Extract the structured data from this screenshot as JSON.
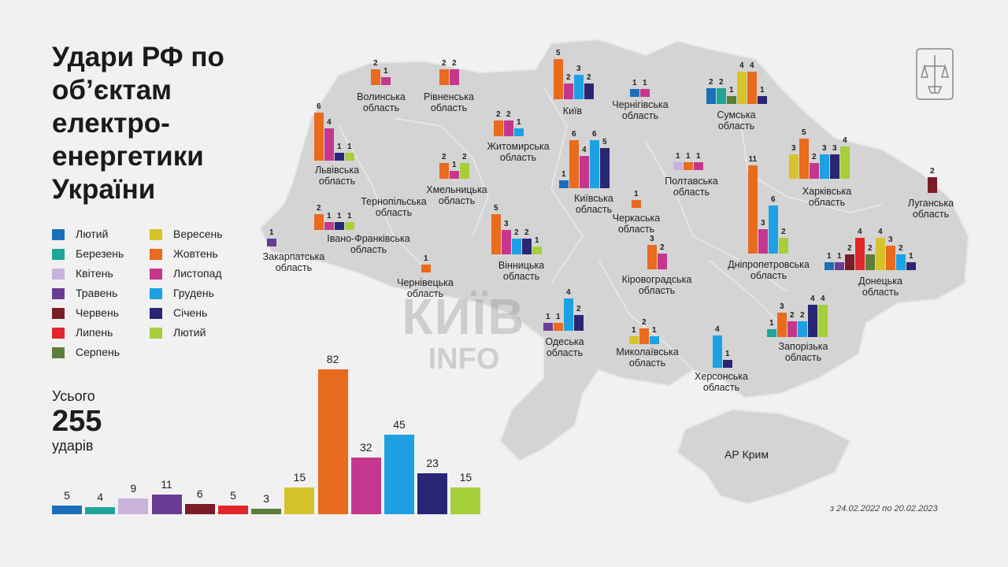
{
  "title": "Удари РФ по об’єктам електро-енергетики України",
  "total": {
    "label": "Усього",
    "value": "255",
    "unit": "ударів"
  },
  "date_note": "з 24.02.2022 по 20.02.2023",
  "crimea_label": "АР Крим",
  "watermark": {
    "line1": "КИЇВ",
    "line2": "INFO"
  },
  "colors": {
    "m1": "#1a6fb8",
    "m2": "#1fa59a",
    "m3": "#c9b3dd",
    "m4": "#6a3c94",
    "m5": "#7b1d27",
    "m6": "#e2262b",
    "m7": "#5b7f3a",
    "m8": "#d6c32c",
    "m9": "#e96b1e",
    "m10": "#c5378e",
    "m11": "#1da1e2",
    "m12": "#2a2676",
    "m13": "#a6cf3a",
    "map": "#d4d4d4",
    "background": "#f1f1f1"
  },
  "legend": [
    {
      "key": "m1",
      "label": "Лютий"
    },
    {
      "key": "m2",
      "label": "Березень"
    },
    {
      "key": "m3",
      "label": "Квітень"
    },
    {
      "key": "m4",
      "label": "Травень"
    },
    {
      "key": "m5",
      "label": "Червень"
    },
    {
      "key": "m6",
      "label": "Липень"
    },
    {
      "key": "m7",
      "label": "Серпень"
    },
    {
      "key": "m8",
      "label": "Вересень"
    },
    {
      "key": "m9",
      "label": "Жовтень"
    },
    {
      "key": "m10",
      "label": "Листопад"
    },
    {
      "key": "m11",
      "label": "Грудень"
    },
    {
      "key": "m12",
      "label": "Січень"
    },
    {
      "key": "m13",
      "label": "Лютий"
    }
  ],
  "chart_data": {
    "type": "bar",
    "title": "Удари РФ по об’єктам електро-енергетики України",
    "series_keys": [
      "m1",
      "m2",
      "m3",
      "m4",
      "m5",
      "m6",
      "m7",
      "m8",
      "m9",
      "m10",
      "m11",
      "m12",
      "m13"
    ],
    "totals": [
      {
        "key": "m1",
        "value": 5
      },
      {
        "key": "m2",
        "value": 4
      },
      {
        "key": "m3",
        "value": 9
      },
      {
        "key": "m4",
        "value": 11
      },
      {
        "key": "m5",
        "value": 6
      },
      {
        "key": "m6",
        "value": 5
      },
      {
        "key": "m7",
        "value": 3
      },
      {
        "key": "m8",
        "value": 15
      },
      {
        "key": "m9",
        "value": 82
      },
      {
        "key": "m10",
        "value": 32
      },
      {
        "key": "m11",
        "value": 45
      },
      {
        "key": "m12",
        "value": 23
      },
      {
        "key": "m13",
        "value": 15
      }
    ],
    "regions": [
      {
        "id": "volyn",
        "name": [
          "Волинська",
          "область"
        ],
        "bars": [
          {
            "key": "m9",
            "value": 2
          },
          {
            "key": "m10",
            "value": 1
          }
        ]
      },
      {
        "id": "rivne",
        "name": [
          "Рівненська",
          "область"
        ],
        "bars": [
          {
            "key": "m9",
            "value": 2
          },
          {
            "key": "m10",
            "value": 2
          }
        ]
      },
      {
        "id": "kyiv-city",
        "name": [
          "Київ"
        ],
        "bars": [
          {
            "key": "m9",
            "value": 5
          },
          {
            "key": "m10",
            "value": 2
          },
          {
            "key": "m11",
            "value": 3
          },
          {
            "key": "m12",
            "value": 2
          }
        ]
      },
      {
        "id": "chernihiv",
        "name": [
          "Чернігівська",
          "область"
        ],
        "bars": [
          {
            "key": "m1",
            "value": 1
          },
          {
            "key": "m10",
            "value": 1
          }
        ]
      },
      {
        "id": "sumy",
        "name": [
          "Сумська",
          "область"
        ],
        "bars": [
          {
            "key": "m1",
            "value": 2
          },
          {
            "key": "m2",
            "value": 2
          },
          {
            "key": "m7",
            "value": 1
          },
          {
            "key": "m8",
            "value": 4
          },
          {
            "key": "m9",
            "value": 4
          },
          {
            "key": "m12",
            "value": 1
          }
        ]
      },
      {
        "id": "lviv",
        "name": [
          "Львівська",
          "область"
        ],
        "bars": [
          {
            "key": "m9",
            "value": 6
          },
          {
            "key": "m10",
            "value": 4
          },
          {
            "key": "m12",
            "value": 1
          },
          {
            "key": "m13",
            "value": 1
          }
        ]
      },
      {
        "id": "zhytomyr",
        "name": [
          "Житомирська",
          "область"
        ],
        "bars": [
          {
            "key": "m9",
            "value": 2
          },
          {
            "key": "m10",
            "value": 2
          },
          {
            "key": "m11",
            "value": 1
          }
        ]
      },
      {
        "id": "khmelnytskyi",
        "name": [
          "Хмельницька",
          "область"
        ],
        "bars": [
          {
            "key": "m9",
            "value": 2
          },
          {
            "key": "m10",
            "value": 1
          },
          {
            "key": "m13",
            "value": 2
          }
        ]
      },
      {
        "id": "kyiv-oblast",
        "name": [
          "Київська",
          "область"
        ],
        "bars": [
          {
            "key": "m1",
            "value": 1
          },
          {
            "key": "m9",
            "value": 6
          },
          {
            "key": "m10",
            "value": 4
          },
          {
            "key": "m11",
            "value": 6
          },
          {
            "key": "m12",
            "value": 5
          }
        ]
      },
      {
        "id": "poltava",
        "name": [
          "Полтавська",
          "область"
        ],
        "bars": [
          {
            "key": "m3",
            "value": 1
          },
          {
            "key": "m9",
            "value": 1
          },
          {
            "key": "m10",
            "value": 1
          }
        ]
      },
      {
        "id": "kharkiv",
        "name": [
          "Харківська",
          "область"
        ],
        "bars": [
          {
            "key": "m8",
            "value": 3
          },
          {
            "key": "m9",
            "value": 5
          },
          {
            "key": "m10",
            "value": 2
          },
          {
            "key": "m11",
            "value": 3
          },
          {
            "key": "m12",
            "value": 3
          },
          {
            "key": "m13",
            "value": 4
          }
        ]
      },
      {
        "id": "luhansk",
        "name": [
          "Луганська",
          "область"
        ],
        "bars": [
          {
            "key": "m5",
            "value": 2
          }
        ]
      },
      {
        "id": "ternopil",
        "name": [
          "Тернопільська",
          "область"
        ],
        "bars": []
      },
      {
        "id": "cherkasy",
        "name": [
          "Черкаська",
          "область"
        ],
        "bars": [
          {
            "key": "m9",
            "value": 1
          }
        ]
      },
      {
        "id": "ivano-frankivsk",
        "name": [
          "Івано-Франківська",
          "область"
        ],
        "bars": [
          {
            "key": "m9",
            "value": 2
          },
          {
            "key": "m10",
            "value": 1
          },
          {
            "key": "m12",
            "value": 1
          },
          {
            "key": "m13",
            "value": 1
          }
        ]
      },
      {
        "id": "zakarpattia",
        "name": [
          "Закарпатська",
          "область"
        ],
        "bars": [
          {
            "key": "m4",
            "value": 1
          }
        ]
      },
      {
        "id": "vinnytsia",
        "name": [
          "Вінницька",
          "область"
        ],
        "bars": [
          {
            "key": "m9",
            "value": 5
          },
          {
            "key": "m10",
            "value": 3
          },
          {
            "key": "m11",
            "value": 2
          },
          {
            "key": "m12",
            "value": 2
          },
          {
            "key": "m13",
            "value": 1
          }
        ]
      },
      {
        "id": "chernivtsi",
        "name": [
          "Чернівецька",
          "область"
        ],
        "bars": [
          {
            "key": "m9",
            "value": 1
          }
        ]
      },
      {
        "id": "kirovohrad",
        "name": [
          "Кіровоградська",
          "область"
        ],
        "bars": [
          {
            "key": "m9",
            "value": 3
          },
          {
            "key": "m10",
            "value": 2
          }
        ]
      },
      {
        "id": "dnipropetrovsk",
        "name": [
          "Дніпропетровська",
          "область"
        ],
        "bars": [
          {
            "key": "m9",
            "value": 11
          },
          {
            "key": "m10",
            "value": 3
          },
          {
            "key": "m11",
            "value": 6
          },
          {
            "key": "m13",
            "value": 2
          }
        ]
      },
      {
        "id": "donetsk",
        "name": [
          "Донецька",
          "область"
        ],
        "bars": [
          {
            "key": "m1",
            "value": 1
          },
          {
            "key": "m4",
            "value": 1
          },
          {
            "key": "m5",
            "value": 2
          },
          {
            "key": "m6",
            "value": 4
          },
          {
            "key": "m7",
            "value": 2
          },
          {
            "key": "m8",
            "value": 4
          },
          {
            "key": "m9",
            "value": 3
          },
          {
            "key": "m11",
            "value": 2
          },
          {
            "key": "m12",
            "value": 1
          }
        ]
      },
      {
        "id": "odesa",
        "name": [
          "Одеська",
          "область"
        ],
        "bars": [
          {
            "key": "m4",
            "value": 1
          },
          {
            "key": "m9",
            "value": 1
          },
          {
            "key": "m11",
            "value": 4
          },
          {
            "key": "m12",
            "value": 2
          }
        ]
      },
      {
        "id": "mykolaiv",
        "name": [
          "Миколаївська",
          "область"
        ],
        "bars": [
          {
            "key": "m8",
            "value": 1
          },
          {
            "key": "m9",
            "value": 2
          },
          {
            "key": "m11",
            "value": 1
          }
        ]
      },
      {
        "id": "zaporizhzhia",
        "name": [
          "Запорізька",
          "область"
        ],
        "bars": [
          {
            "key": "m2",
            "value": 1
          },
          {
            "key": "m9",
            "value": 3
          },
          {
            "key": "m10",
            "value": 2
          },
          {
            "key": "m11",
            "value": 2
          },
          {
            "key": "m12",
            "value": 4
          },
          {
            "key": "m13",
            "value": 4
          }
        ]
      },
      {
        "id": "kherson",
        "name": [
          "Херсонська",
          "область"
        ],
        "bars": [
          {
            "key": "m11",
            "value": 4
          },
          {
            "key": "m12",
            "value": 1
          }
        ]
      }
    ]
  }
}
